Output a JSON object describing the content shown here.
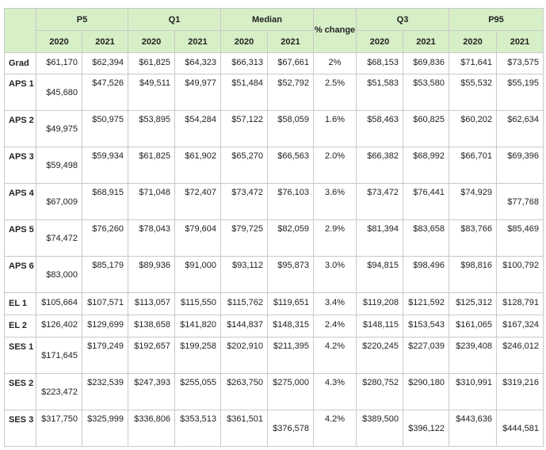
{
  "header": {
    "groups": {
      "p5": "P5",
      "q1": "Q1",
      "median": "Median",
      "pct_change": "% change",
      "q3": "Q3",
      "p95": "P95"
    },
    "years": {
      "y2020": "2020",
      "y2021": "2021"
    }
  },
  "rows": [
    {
      "label": "Grad",
      "p5_2020": "$61,170",
      "p5_2021": "$62,394",
      "q1_2020": "$61,825",
      "q1_2021": "$64,323",
      "med_2020": "$66,313",
      "med_2021": "$67,661",
      "pct": "2%",
      "q3_2020": "$68,153",
      "q3_2021": "$69,836",
      "p95_2020": "$71,641",
      "p95_2021": "$73,575"
    },
    {
      "label": "APS 1",
      "p5_2020": "$45,680",
      "p5_2021": "$47,526",
      "q1_2020": "$49,511",
      "q1_2021": "$49,977",
      "med_2020": "$51,484",
      "med_2021": "$52,792",
      "pct": "2.5%",
      "q3_2020": "$51,583",
      "q3_2021": "$53,580",
      "p95_2020": "$55,532",
      "p95_2021": "$55,195"
    },
    {
      "label": "APS 2",
      "p5_2020": "$49,975",
      "p5_2021": "$50,975",
      "q1_2020": "$53,895",
      "q1_2021": "$54,284",
      "med_2020": "$57,122",
      "med_2021": "$58,059",
      "pct": "1.6%",
      "q3_2020": "$58,463",
      "q3_2021": "$60,825",
      "p95_2020": "$60,202",
      "p95_2021": "$62,634"
    },
    {
      "label": "APS 3",
      "p5_2020": "$59,498",
      "p5_2021": "$59,934",
      "q1_2020": "$61,825",
      "q1_2021": "$61,902",
      "med_2020": "$65,270",
      "med_2021": "$66,563",
      "pct": "2.0%",
      "q3_2020": "$66,382",
      "q3_2021": "$68,992",
      "p95_2020": "$66,701",
      "p95_2021": "$69,396"
    },
    {
      "label": "APS 4",
      "p5_2020": "$67,009",
      "p5_2021": "$68,915",
      "q1_2020": "$71,048",
      "q1_2021": "$72,407",
      "med_2020": "$73,472",
      "med_2021": "$76,103",
      "pct": "3.6%",
      "q3_2020": "$73,472",
      "q3_2021": "$76,441",
      "p95_2020": "$74,929",
      "p95_2021": "$77,768"
    },
    {
      "label": "APS 5",
      "p5_2020": "$74,472",
      "p5_2021": "$76,260",
      "q1_2020": "$78,043",
      "q1_2021": "$79,604",
      "med_2020": "$79,725",
      "med_2021": "$82,059",
      "pct": "2.9%",
      "q3_2020": "$81,394",
      "q3_2021": "$83,658",
      "p95_2020": "$83,766",
      "p95_2021": "$85,469"
    },
    {
      "label": "APS 6",
      "p5_2020": "$83,000",
      "p5_2021": "$85,179",
      "q1_2020": "$89,936",
      "q1_2021": "$91,000",
      "med_2020": "$93,112",
      "med_2021": "$95,873",
      "pct": "3.0%",
      "q3_2020": "$94,815",
      "q3_2021": "$98,496",
      "p95_2020": "$98,816",
      "p95_2021": "$100,792"
    },
    {
      "label": "EL 1",
      "p5_2020": "$105,664",
      "p5_2021": "$107,571",
      "q1_2020": "$113,057",
      "q1_2021": "$115,550",
      "med_2020": "$115,762",
      "med_2021": "$119,651",
      "pct": "3.4%",
      "q3_2020": "$119,208",
      "q3_2021": "$121,592",
      "p95_2020": "$125,312",
      "p95_2021": "$128,791"
    },
    {
      "label": "EL 2",
      "p5_2020": "$126,402",
      "p5_2021": "$129,699",
      "q1_2020": "$138,658",
      "q1_2021": "$141,820",
      "med_2020": "$144,837",
      "med_2021": "$148,315",
      "pct": "2.4%",
      "q3_2020": "$148,115",
      "q3_2021": "$153,543",
      "p95_2020": "$161,065",
      "p95_2021": "$167,324"
    },
    {
      "label": "SES 1",
      "p5_2020": "$171,645",
      "p5_2021": "$179,249",
      "q1_2020": "$192,657",
      "q1_2021": "$199,258",
      "med_2020": "$202,910",
      "med_2021": "$211,395",
      "pct": "4.2%",
      "q3_2020": "$220,245",
      "q3_2021": "$227,039",
      "p95_2020": "$239,408",
      "p95_2021": "$246,012"
    },
    {
      "label": "SES 2",
      "p5_2020": "$223,472",
      "p5_2021": "$232,539",
      "q1_2020": "$247,393",
      "q1_2021": "$255,055",
      "med_2020": "$263,750",
      "med_2021": "$275,000",
      "pct": "4.3%",
      "q3_2020": "$280,752",
      "q3_2021": "$290,180",
      "p95_2020": "$310,991",
      "p95_2021": "$319,216"
    },
    {
      "label": "SES 3",
      "p5_2020": "$317,750",
      "p5_2021": "$325,999",
      "q1_2020": "$336,806",
      "q1_2021": "$353,513",
      "med_2020": "$361,501",
      "med_2021": "$376,578",
      "pct": "4.2%",
      "q3_2020": "$389,500",
      "q3_2021": "$396,122",
      "p95_2020": "$443,636",
      "p95_2021": "$444,581"
    }
  ]
}
